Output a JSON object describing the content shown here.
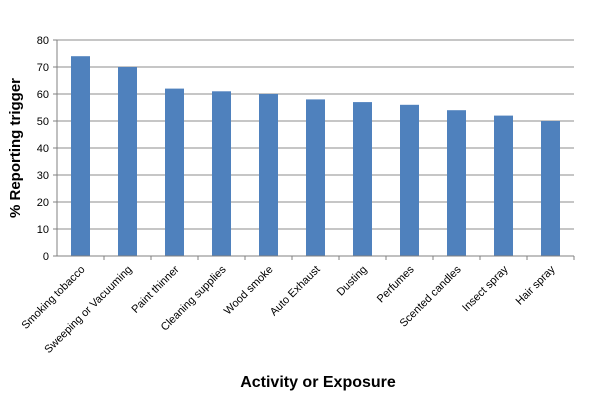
{
  "chart_data": {
    "type": "bar",
    "title": "",
    "xlabel": "Activity or Exposure",
    "ylabel": "% Reporting trigger",
    "ylim": [
      0,
      80
    ],
    "yticks": [
      0,
      10,
      20,
      30,
      40,
      50,
      60,
      70,
      80
    ],
    "grid": true,
    "legend": "none",
    "bar_color": "#4F81BD",
    "categories": [
      "Smoking tobacco",
      "Sweeping or Vacuuming",
      "Paint thinner",
      "Cleaning supplies",
      "Wood smoke",
      "Auto Exhaust",
      "Dusting",
      "Perfumes",
      "Scented candles",
      "Insect spray",
      "Hair spray"
    ],
    "values": [
      74,
      70,
      62,
      61,
      60,
      58,
      57,
      56,
      54,
      52,
      50
    ]
  }
}
